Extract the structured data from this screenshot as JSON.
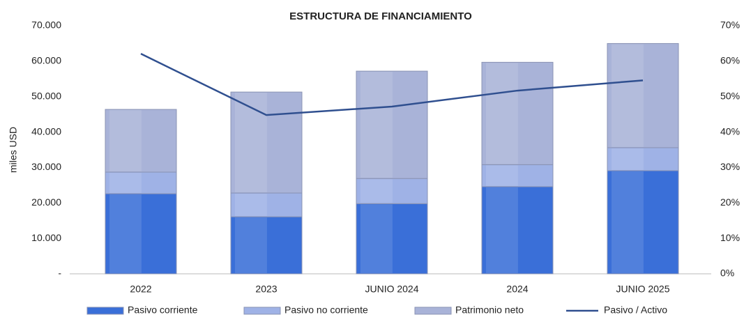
{
  "chart_data": {
    "type": "bar",
    "stacked": true,
    "title": "ESTRUCTURA DE FINANCIAMIENTO",
    "y_label": "miles USD",
    "categories": [
      "2022",
      "2023",
      "JUNIO 2024",
      "2024",
      "JUNIO 2025"
    ],
    "series": [
      {
        "name": "Pasivo corriente",
        "color": "#3a6fd8",
        "values": [
          22600,
          16100,
          19800,
          24600,
          29100
        ]
      },
      {
        "name": "Pasivo no corriente",
        "color": "#9fb2e6",
        "values": [
          6100,
          6700,
          7100,
          6200,
          6500
        ]
      },
      {
        "name": "Patrimonio neto",
        "color": "#a9b3d8",
        "values": [
          17700,
          28500,
          30300,
          28900,
          29400
        ]
      },
      {
        "name": "Pasivo / Activo",
        "color": "#2f4f8f",
        "type": "line",
        "axis": "y2",
        "values": [
          62.1,
          44.8,
          47.2,
          51.7,
          54.6
        ]
      }
    ],
    "ylim": [
      0,
      70000
    ],
    "yticks": [
      {
        "value": 0,
        "label": "-"
      },
      {
        "value": 10000,
        "label": "10.000"
      },
      {
        "value": 20000,
        "label": "20.000"
      },
      {
        "value": 30000,
        "label": "30.000"
      },
      {
        "value": 40000,
        "label": "40.000"
      },
      {
        "value": 50000,
        "label": "50.000"
      },
      {
        "value": 60000,
        "label": "60.000"
      },
      {
        "value": 70000,
        "label": "70.000"
      }
    ],
    "y2lim": [
      0,
      70
    ],
    "y2ticks": [
      {
        "value": 0,
        "label": "0%"
      },
      {
        "value": 10,
        "label": "10%"
      },
      {
        "value": 20,
        "label": "20%"
      },
      {
        "value": 30,
        "label": "30%"
      },
      {
        "value": 40,
        "label": "40%"
      },
      {
        "value": 50,
        "label": "50%"
      },
      {
        "value": 60,
        "label": "60%"
      },
      {
        "value": 70,
        "label": "70%"
      }
    ],
    "legend": "bottom"
  }
}
